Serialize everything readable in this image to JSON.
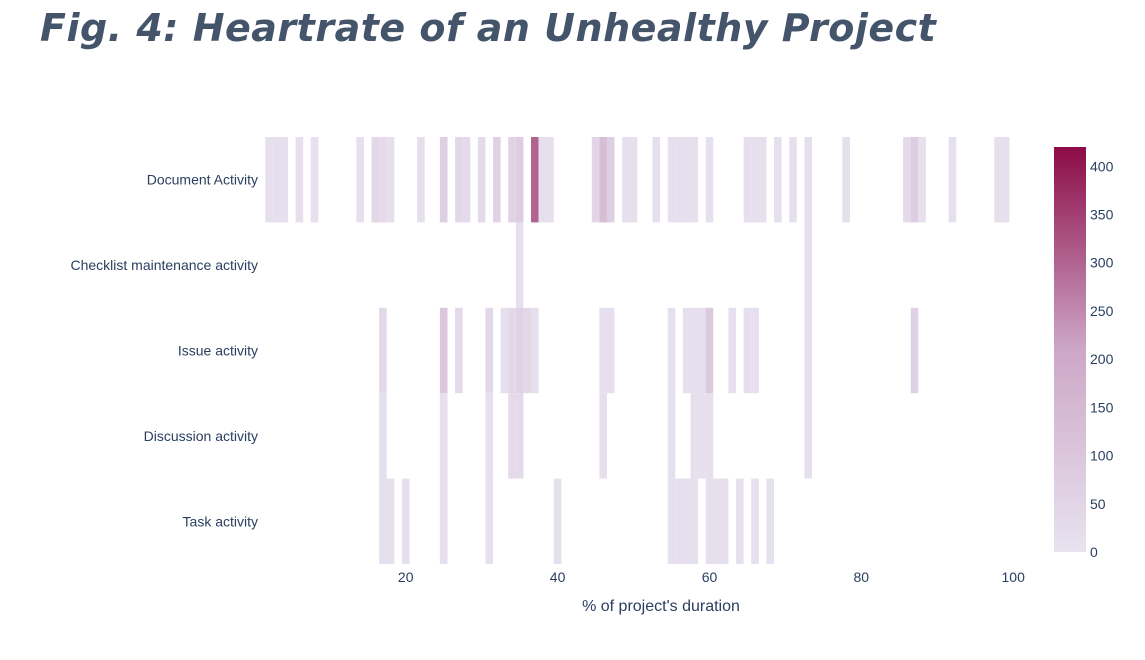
{
  "figure_title": "Fig. 4:  Heartrate of an Unhealthy Project",
  "chart_data": {
    "type": "heatmap",
    "title": "Fig. 4:  Heartrate of an Unhealthy Project",
    "xlabel": "% of project's duration",
    "ylabel": "",
    "xlim": [
      1.6,
      103
    ],
    "xticks": [
      20,
      40,
      60,
      80,
      100
    ],
    "bin_width": 1,
    "categories": [
      "Document Activity",
      "Checklist maintenance activity",
      "Issue activity",
      "Discussion activity",
      "Task activity"
    ],
    "colorscale": {
      "min": 0,
      "max": 420,
      "ticks": [
        0,
        50,
        100,
        150,
        200,
        250,
        300,
        350,
        400
      ],
      "low_color": "#e8e3f0",
      "high_color": "#8c0b47"
    },
    "grid": false,
    "legend": "colorbar-right",
    "series": [
      {
        "name": "Document Activity",
        "cells": [
          [
            2,
            15
          ],
          [
            3,
            15
          ],
          [
            4,
            15
          ],
          [
            6,
            15
          ],
          [
            8,
            15
          ],
          [
            14,
            15
          ],
          [
            16,
            40
          ],
          [
            17,
            30
          ],
          [
            18,
            15
          ],
          [
            22,
            15
          ],
          [
            25,
            70
          ],
          [
            27,
            40
          ],
          [
            28,
            30
          ],
          [
            30,
            30
          ],
          [
            32,
            60
          ],
          [
            34,
            55
          ],
          [
            35,
            80
          ],
          [
            37,
            300
          ],
          [
            38,
            15
          ],
          [
            39,
            15
          ],
          [
            45,
            50
          ],
          [
            46,
            130
          ],
          [
            47,
            70
          ],
          [
            49,
            15
          ],
          [
            50,
            15
          ],
          [
            53,
            15
          ],
          [
            55,
            15
          ],
          [
            56,
            15
          ],
          [
            57,
            15
          ],
          [
            58,
            15
          ],
          [
            60,
            15
          ],
          [
            65,
            15
          ],
          [
            66,
            15
          ],
          [
            67,
            15
          ],
          [
            69,
            15
          ],
          [
            71,
            15
          ],
          [
            73,
            15
          ],
          [
            78,
            15
          ],
          [
            86,
            30
          ],
          [
            87,
            80
          ],
          [
            88,
            15
          ],
          [
            92,
            15
          ],
          [
            98,
            15
          ],
          [
            99,
            15
          ]
        ]
      },
      {
        "name": "Checklist maintenance activity",
        "cells": [
          [
            35,
            15
          ],
          [
            73,
            15
          ]
        ]
      },
      {
        "name": "Issue activity",
        "cells": [
          [
            17,
            40
          ],
          [
            25,
            100
          ],
          [
            27,
            30
          ],
          [
            31,
            40
          ],
          [
            33,
            15
          ],
          [
            34,
            40
          ],
          [
            35,
            60
          ],
          [
            36,
            40
          ],
          [
            37,
            15
          ],
          [
            46,
            15
          ],
          [
            47,
            15
          ],
          [
            55,
            15
          ],
          [
            57,
            15
          ],
          [
            58,
            15
          ],
          [
            59,
            15
          ],
          [
            60,
            90
          ],
          [
            63,
            15
          ],
          [
            65,
            15
          ],
          [
            66,
            15
          ],
          [
            73,
            15
          ],
          [
            87,
            60
          ]
        ]
      },
      {
        "name": "Discussion activity",
        "cells": [
          [
            17,
            15
          ],
          [
            25,
            15
          ],
          [
            31,
            15
          ],
          [
            34,
            30
          ],
          [
            35,
            30
          ],
          [
            46,
            15
          ],
          [
            55,
            15
          ],
          [
            58,
            15
          ],
          [
            59,
            15
          ],
          [
            60,
            15
          ],
          [
            73,
            15
          ]
        ]
      },
      {
        "name": "Task activity",
        "cells": [
          [
            17,
            15
          ],
          [
            18,
            15
          ],
          [
            20,
            15
          ],
          [
            25,
            15
          ],
          [
            31,
            15
          ],
          [
            40,
            15
          ],
          [
            55,
            15
          ],
          [
            56,
            15
          ],
          [
            57,
            15
          ],
          [
            58,
            15
          ],
          [
            60,
            15
          ],
          [
            61,
            15
          ],
          [
            62,
            15
          ],
          [
            64,
            15
          ],
          [
            66,
            15
          ],
          [
            68,
            15
          ]
        ]
      }
    ]
  }
}
